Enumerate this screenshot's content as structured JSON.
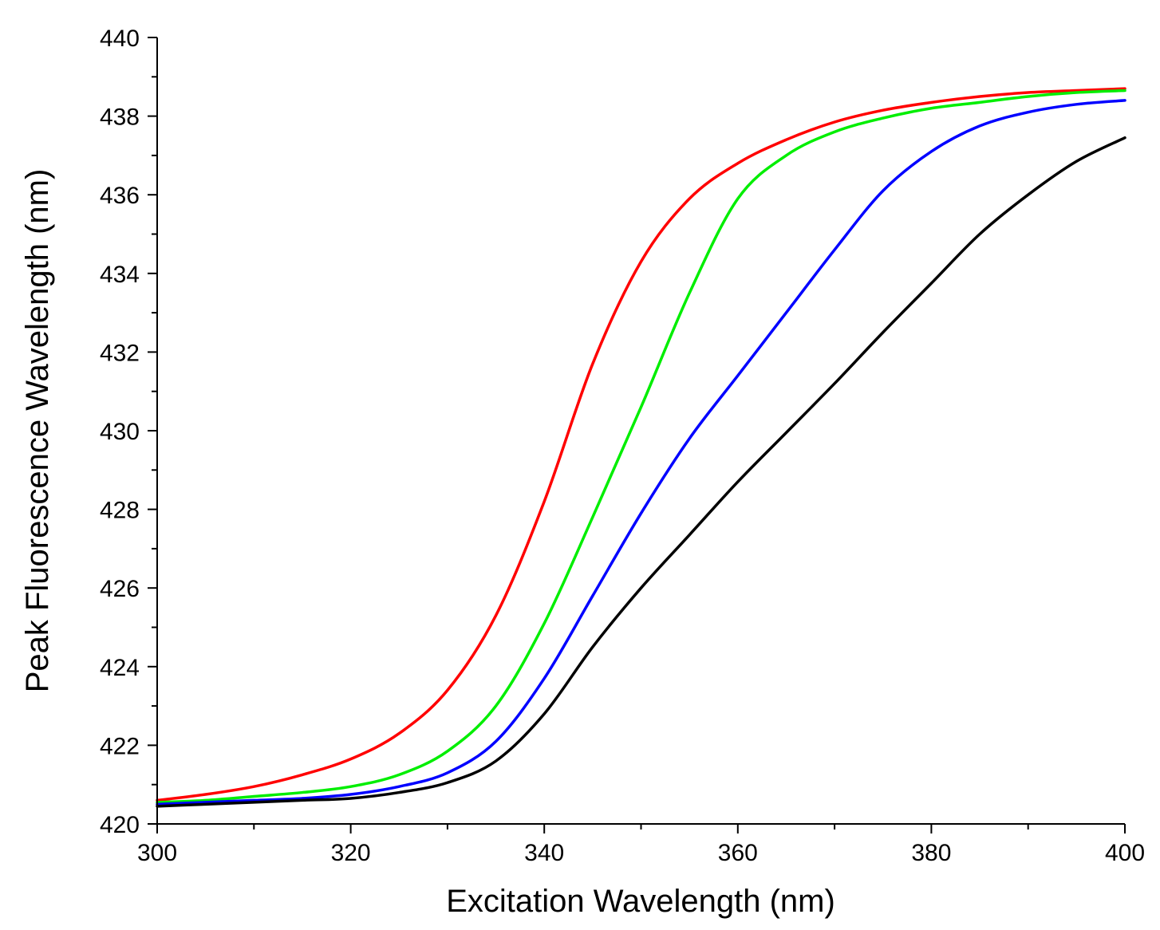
{
  "chart_data": {
    "type": "line",
    "title": "",
    "xlabel": "Excitation Wavelength (nm)",
    "ylabel": "Peak Fluorescence Wavelength (nm)",
    "xlim": [
      300,
      400
    ],
    "ylim": [
      420,
      440
    ],
    "x_ticks": [
      "300",
      "320",
      "340",
      "360",
      "380",
      "400"
    ],
    "y_ticks": [
      "420",
      "422",
      "424",
      "426",
      "428",
      "430",
      "432",
      "434",
      "436",
      "438",
      "440"
    ],
    "grid": false,
    "legend": "none",
    "x": [
      300,
      305,
      310,
      315,
      320,
      325,
      330,
      335,
      340,
      345,
      350,
      355,
      360,
      365,
      370,
      375,
      380,
      385,
      390,
      395,
      400
    ],
    "series": [
      {
        "color": "#ff0000",
        "values": [
          420.6,
          420.75,
          420.95,
          421.25,
          421.65,
          422.3,
          423.4,
          425.3,
          428.2,
          431.7,
          434.3,
          435.9,
          436.8,
          437.4,
          437.85,
          438.15,
          438.35,
          438.5,
          438.6,
          438.65,
          438.7
        ]
      },
      {
        "color": "#00ee00",
        "values": [
          420.55,
          420.6,
          420.7,
          420.8,
          420.95,
          421.25,
          421.85,
          423.0,
          425.1,
          427.8,
          430.6,
          433.5,
          435.9,
          437.0,
          437.6,
          437.95,
          438.2,
          438.35,
          438.5,
          438.6,
          438.65
        ]
      },
      {
        "color": "#0000ff",
        "values": [
          420.5,
          420.55,
          420.6,
          420.65,
          420.75,
          420.95,
          421.3,
          422.1,
          423.7,
          425.8,
          427.9,
          429.8,
          431.4,
          433.0,
          434.6,
          436.1,
          437.1,
          437.75,
          438.1,
          438.3,
          438.4
        ]
      },
      {
        "color": "#000000",
        "values": [
          420.45,
          420.5,
          420.55,
          420.6,
          420.65,
          420.8,
          421.05,
          421.6,
          422.8,
          424.5,
          426.0,
          427.35,
          428.7,
          429.95,
          431.2,
          432.5,
          433.75,
          435.0,
          436.0,
          436.85,
          437.45
        ]
      }
    ]
  }
}
